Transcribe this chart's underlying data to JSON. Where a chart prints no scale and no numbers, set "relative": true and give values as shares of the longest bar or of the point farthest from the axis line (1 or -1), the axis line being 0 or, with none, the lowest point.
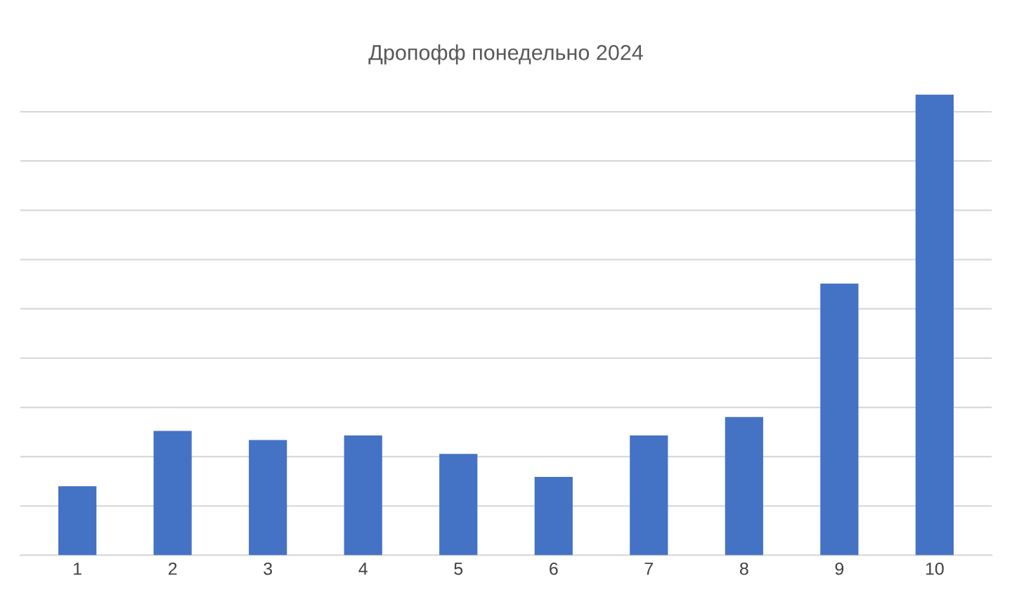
{
  "chart_data": {
    "type": "bar",
    "title": "Дропофф понедельно 2024",
    "categories": [
      "1",
      "2",
      "3",
      "4",
      "5",
      "6",
      "7",
      "8",
      "9",
      "10"
    ],
    "values": [
      0.15,
      0.27,
      0.25,
      0.26,
      0.22,
      0.17,
      0.26,
      0.3,
      0.59,
      1
    ],
    "color": "#4472c4",
    "relative": true,
    "grid": "y"
  }
}
